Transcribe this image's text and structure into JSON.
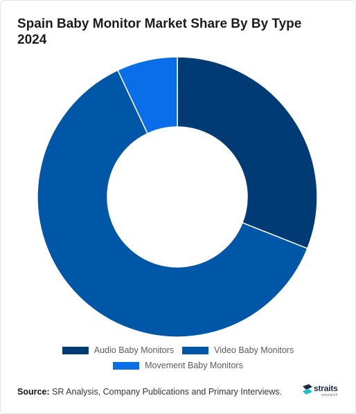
{
  "title_lines": [
    "Spain Baby Monitor Market Share By By Type",
    "2024"
  ],
  "chart_data": {
    "type": "pie",
    "donut": true,
    "title": "Spain Baby Monitor Market Share By By Type 2024",
    "categories": [
      "Audio Baby Monitors",
      "Video Baby Monitors",
      "Movement Baby Monitors"
    ],
    "values": [
      31,
      62,
      7
    ],
    "unit": "%",
    "colors": [
      "#003b75",
      "#0057a8",
      "#0a6ee8"
    ],
    "legend": "bottom",
    "legend_rows": [
      [
        "Audio Baby Monitors",
        "Video Baby Monitors"
      ],
      [
        "Movement Baby Monitors"
      ]
    ]
  },
  "source": {
    "label": "Source:",
    "text": " SR Analysis, Company Publications and Primary Interviews."
  },
  "logo": {
    "name": "straits",
    "sub": "research",
    "icon": "straits-logo-icon"
  }
}
